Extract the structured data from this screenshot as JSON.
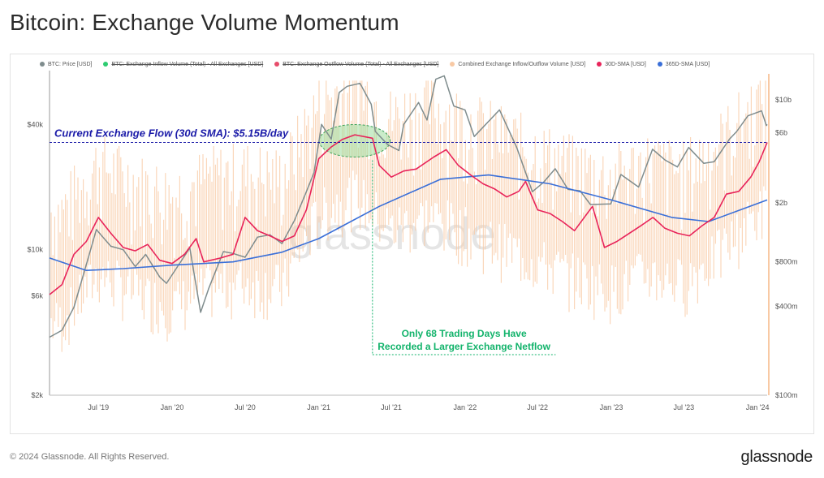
{
  "header": {
    "title": "Bitcoin: Exchange Volume Momentum"
  },
  "legend": [
    {
      "label": "BTC: Price [USD]",
      "color": "#7f8c8d",
      "active": true
    },
    {
      "label": "BTC: Exchange Inflow Volume (Total) - All Exchanges [USD]",
      "color": "#2ecc71",
      "active": false
    },
    {
      "label": "BTC: Exchange Outflow Volume (Total) - All Exchanges [USD]",
      "color": "#e74c6a",
      "active": false
    },
    {
      "label": "Combined Exchange Inflow/Outflow Volume [USD]",
      "color": "#f8c9a4",
      "active": true
    },
    {
      "label": "30D-SMA [USD]",
      "color": "#e8245a",
      "active": true
    },
    {
      "label": "365D-SMA [USD]",
      "color": "#3a6fd8",
      "active": true
    }
  ],
  "annotations": {
    "current_flow": "Current Exchange Flow (30d SMA): $5.15B/day",
    "note_line1": "Only 68 Trading Days Have",
    "note_line2": "Recorded a Larger Exchange Netflow"
  },
  "watermark": "glassnode",
  "footer": {
    "copyright": "© 2024 Glassnode. All Rights Reserved.",
    "brand": "glassnode"
  },
  "colors": {
    "price": "#7f8c8d",
    "volume": "#f8c9a4",
    "sma30": "#e8245a",
    "sma365": "#3a6fd8",
    "reference_line": "#1a1aa8",
    "note_text": "#12b36b",
    "highlight_fill": "#9fdc9f"
  },
  "chart_data": {
    "type": "line",
    "x_ticks": [
      "Jul '19",
      "Jan '20",
      "Jul '20",
      "Jan '21",
      "Jul '21",
      "Jan '22",
      "Jul '22",
      "Jan '23",
      "Jul '23",
      "Jan '24"
    ],
    "x_range": [
      "2019-03-01",
      "2024-01-25"
    ],
    "left_axis": {
      "scale": "log",
      "range": [
        2000,
        70000
      ],
      "ticks": [
        {
          "v": 2000,
          "l": "$2k"
        },
        {
          "v": 6000,
          "l": "$6k"
        },
        {
          "v": 10000,
          "l": "$10k"
        },
        {
          "v": 40000,
          "l": "$40k"
        }
      ]
    },
    "right_axis": {
      "scale": "log",
      "range": [
        100000000,
        15000000000
      ],
      "ticks": [
        {
          "v": 100000000,
          "l": "$100m"
        },
        {
          "v": 400000000,
          "l": "$400m"
        },
        {
          "v": 800000000,
          "l": "$800m"
        },
        {
          "v": 2000000000,
          "l": "$2b"
        },
        {
          "v": 6000000000,
          "l": "$6b"
        },
        {
          "v": 10000000000,
          "l": "$10b"
        }
      ]
    },
    "reference_line": {
      "value_usd": 5150000000,
      "axis": "right"
    },
    "highlight_window": {
      "start": "2021-01-10",
      "end": "2021-06-20"
    },
    "note_window": {
      "start": "2021-05-15",
      "end": "2022-08-15"
    },
    "series": [
      {
        "name": "BTC: Price [USD]",
        "axis": "left",
        "points": [
          [
            "2019-03-01",
            3800
          ],
          [
            "2019-04-01",
            4100
          ],
          [
            "2019-05-01",
            5300
          ],
          [
            "2019-06-01",
            8500
          ],
          [
            "2019-06-26",
            12500
          ],
          [
            "2019-08-01",
            10400
          ],
          [
            "2019-09-01",
            10000
          ],
          [
            "2019-10-01",
            8300
          ],
          [
            "2019-10-27",
            9500
          ],
          [
            "2019-12-01",
            7400
          ],
          [
            "2019-12-18",
            6900
          ],
          [
            "2020-02-14",
            10200
          ],
          [
            "2020-03-12",
            5000
          ],
          [
            "2020-04-01",
            6500
          ],
          [
            "2020-05-08",
            9800
          ],
          [
            "2020-06-01",
            9600
          ],
          [
            "2020-07-01",
            9200
          ],
          [
            "2020-08-01",
            11500
          ],
          [
            "2020-09-01",
            11800
          ],
          [
            "2020-10-01",
            10700
          ],
          [
            "2020-11-01",
            13800
          ],
          [
            "2020-12-01",
            19000
          ],
          [
            "2020-12-20",
            23500
          ],
          [
            "2021-01-08",
            40000
          ],
          [
            "2021-02-01",
            34000
          ],
          [
            "2021-02-21",
            57000
          ],
          [
            "2021-03-13",
            61000
          ],
          [
            "2021-04-14",
            63000
          ],
          [
            "2021-05-12",
            50000
          ],
          [
            "2021-05-22",
            37000
          ],
          [
            "2021-06-22",
            32000
          ],
          [
            "2021-07-20",
            30000
          ],
          [
            "2021-08-01",
            40000
          ],
          [
            "2021-09-07",
            51000
          ],
          [
            "2021-09-28",
            42000
          ],
          [
            "2021-10-20",
            66000
          ],
          [
            "2021-11-10",
            68500
          ],
          [
            "2021-12-04",
            49000
          ],
          [
            "2022-01-01",
            47000
          ],
          [
            "2022-01-24",
            35000
          ],
          [
            "2022-03-28",
            47000
          ],
          [
            "2022-05-10",
            31000
          ],
          [
            "2022-06-18",
            19000
          ],
          [
            "2022-07-15",
            21000
          ],
          [
            "2022-08-14",
            24500
          ],
          [
            "2022-09-15",
            19500
          ],
          [
            "2022-10-15",
            19200
          ],
          [
            "2022-11-10",
            16500
          ],
          [
            "2022-12-31",
            16600
          ],
          [
            "2023-01-25",
            23000
          ],
          [
            "2023-03-10",
            20000
          ],
          [
            "2023-04-14",
            30400
          ],
          [
            "2023-05-15",
            27000
          ],
          [
            "2023-06-15",
            25000
          ],
          [
            "2023-07-13",
            31000
          ],
          [
            "2023-08-20",
            26000
          ],
          [
            "2023-09-15",
            26500
          ],
          [
            "2023-10-23",
            34000
          ],
          [
            "2023-11-10",
            37000
          ],
          [
            "2023-12-08",
            44000
          ],
          [
            "2024-01-11",
            46500
          ],
          [
            "2024-01-23",
            39500
          ],
          [
            "2024-01-25",
            40000
          ]
        ]
      },
      {
        "name": "30D-SMA [USD]",
        "axis": "right",
        "points": [
          [
            "2019-03-01",
            480000000
          ],
          [
            "2019-04-01",
            560000000
          ],
          [
            "2019-05-01",
            900000000
          ],
          [
            "2019-06-01",
            1100000000
          ],
          [
            "2019-07-01",
            1600000000
          ],
          [
            "2019-08-01",
            1250000000
          ],
          [
            "2019-09-01",
            1000000000
          ],
          [
            "2019-10-01",
            950000000
          ],
          [
            "2019-11-01",
            1050000000
          ],
          [
            "2019-12-01",
            820000000
          ],
          [
            "2020-01-01",
            780000000
          ],
          [
            "2020-02-01",
            900000000
          ],
          [
            "2020-03-01",
            1150000000
          ],
          [
            "2020-03-20",
            800000000
          ],
          [
            "2020-05-01",
            850000000
          ],
          [
            "2020-06-01",
            900000000
          ],
          [
            "2020-07-01",
            1600000000
          ],
          [
            "2020-08-01",
            1300000000
          ],
          [
            "2020-09-01",
            1200000000
          ],
          [
            "2020-10-01",
            1100000000
          ],
          [
            "2020-11-01",
            1200000000
          ],
          [
            "2020-12-01",
            1800000000
          ],
          [
            "2021-01-01",
            4000000000
          ],
          [
            "2021-02-01",
            4800000000
          ],
          [
            "2021-03-01",
            5400000000
          ],
          [
            "2021-04-01",
            5800000000
          ],
          [
            "2021-05-15",
            5500000000
          ],
          [
            "2021-06-01",
            3600000000
          ],
          [
            "2021-07-01",
            3000000000
          ],
          [
            "2021-08-01",
            3300000000
          ],
          [
            "2021-09-01",
            3400000000
          ],
          [
            "2021-10-15",
            4100000000
          ],
          [
            "2021-11-15",
            4600000000
          ],
          [
            "2021-12-15",
            3600000000
          ],
          [
            "2022-01-15",
            3100000000
          ],
          [
            "2022-02-15",
            2700000000
          ],
          [
            "2022-03-15",
            2500000000
          ],
          [
            "2022-04-15",
            2200000000
          ],
          [
            "2022-05-15",
            2400000000
          ],
          [
            "2022-06-01",
            2800000000
          ],
          [
            "2022-07-01",
            1800000000
          ],
          [
            "2022-08-01",
            1700000000
          ],
          [
            "2022-09-01",
            1500000000
          ],
          [
            "2022-10-01",
            1300000000
          ],
          [
            "2022-11-15",
            1900000000
          ],
          [
            "2022-12-15",
            1000000000
          ],
          [
            "2023-01-15",
            1100000000
          ],
          [
            "2023-03-15",
            1400000000
          ],
          [
            "2023-04-15",
            1600000000
          ],
          [
            "2023-05-15",
            1350000000
          ],
          [
            "2023-06-15",
            1250000000
          ],
          [
            "2023-07-15",
            1200000000
          ],
          [
            "2023-08-15",
            1400000000
          ],
          [
            "2023-09-15",
            1600000000
          ],
          [
            "2023-10-15",
            2300000000
          ],
          [
            "2023-11-15",
            2400000000
          ],
          [
            "2023-12-15",
            3000000000
          ],
          [
            "2024-01-05",
            3800000000
          ],
          [
            "2024-01-25",
            5150000000
          ]
        ]
      },
      {
        "name": "365D-SMA [USD]",
        "axis": "right",
        "points": [
          [
            "2019-03-01",
            850000000
          ],
          [
            "2019-06-01",
            700000000
          ],
          [
            "2019-09-01",
            720000000
          ],
          [
            "2020-01-01",
            760000000
          ],
          [
            "2020-06-01",
            800000000
          ],
          [
            "2020-10-01",
            930000000
          ],
          [
            "2021-01-01",
            1150000000
          ],
          [
            "2021-06-01",
            1900000000
          ],
          [
            "2021-11-01",
            2900000000
          ],
          [
            "2022-03-01",
            3100000000
          ],
          [
            "2022-08-01",
            2700000000
          ],
          [
            "2023-01-01",
            2100000000
          ],
          [
            "2023-06-01",
            1600000000
          ],
          [
            "2023-09-01",
            1500000000
          ],
          [
            "2024-01-25",
            2100000000
          ]
        ]
      },
      {
        "name": "Combined Exchange Inflow/Outflow Volume [USD]",
        "axis": "right",
        "note": "daily bars; envelope levels shown",
        "points": [
          [
            "2019-04-01",
            700000000
          ],
          [
            "2019-07-01",
            1500000000
          ],
          [
            "2019-10-01",
            1100000000
          ],
          [
            "2020-01-01",
            900000000
          ],
          [
            "2020-04-01",
            1200000000
          ],
          [
            "2020-07-01",
            1300000000
          ],
          [
            "2020-10-01",
            1200000000
          ],
          [
            "2021-01-01",
            3800000000
          ],
          [
            "2021-04-01",
            5200000000
          ],
          [
            "2021-07-01",
            3000000000
          ],
          [
            "2021-10-01",
            3700000000
          ],
          [
            "2022-01-01",
            2900000000
          ],
          [
            "2022-04-01",
            2300000000
          ],
          [
            "2022-07-01",
            1800000000
          ],
          [
            "2022-10-01",
            1400000000
          ],
          [
            "2023-01-01",
            1200000000
          ],
          [
            "2023-04-01",
            1500000000
          ],
          [
            "2023-07-01",
            1300000000
          ],
          [
            "2023-10-01",
            2100000000
          ],
          [
            "2024-01-15",
            4200000000
          ]
        ]
      }
    ]
  }
}
